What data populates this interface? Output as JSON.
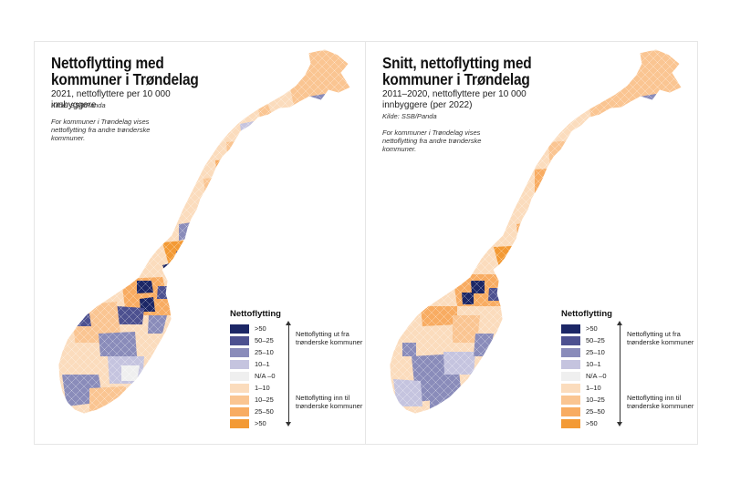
{
  "colors": {
    "cat_gt50_out": "#1c2766",
    "cat_50_25_out": "#4d5190",
    "cat_25_10_out": "#8a8cba",
    "cat_10_1_out": "#c5c4df",
    "cat_na": "#efefef",
    "cat_1_10_in": "#fbdcbd",
    "cat_10_25_in": "#fac592",
    "cat_25_50_in": "#f8ac62",
    "cat_gt50_in": "#f39a35"
  },
  "legend": {
    "title": "Nettoflytting",
    "items": [
      {
        "label": ">50",
        "color": "#1c2766"
      },
      {
        "label": "50–25",
        "color": "#4d5190"
      },
      {
        "label": "25–10",
        "color": "#8a8cba"
      },
      {
        "label": "10–1",
        "color": "#c5c4df"
      },
      {
        "label": "N/A –0",
        "color": "#efefef"
      },
      {
        "label": "1–10",
        "color": "#fbdcbd"
      },
      {
        "label": "10–25",
        "color": "#fac592"
      },
      {
        "label": "25–50",
        "color": "#f8ac62"
      },
      {
        "label": ">50",
        "color": "#f39a35"
      }
    ],
    "out_text": "Nettoflytting ut fra trønderske kommuner",
    "in_text": "Nettoflytting inn til trønderske kommuner"
  },
  "left": {
    "title": "Nettoflytting med kommuner i Trøndelag",
    "subtitle": "2021, nettoflyttere per 10 000 innbyggere",
    "source": "Kilde: SSB/Panda",
    "note": "For kommuner i Trøndelag vises nettoflytting fra andre trønderske kommuner."
  },
  "right": {
    "title": "Snitt, nettoflytting med kommuner i Trøndelag",
    "subtitle": "2011–2020, nettoflyttere per 10 000 innbyggere (per 2022)",
    "source": "Kilde: SSB/Panda",
    "note": "For kommuner i Trøndelag vises nettoflytting fra andre trønderske kommuner."
  }
}
